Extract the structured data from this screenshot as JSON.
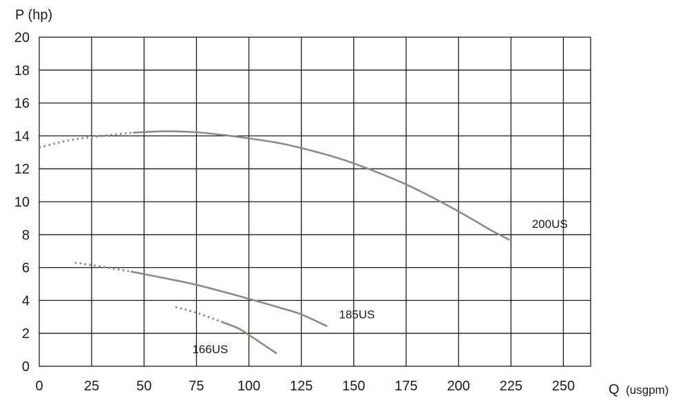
{
  "chart_data": {
    "type": "line",
    "title": "",
    "ylabel": "P (hp)",
    "xlabel": "Q",
    "xlabel_unit": "(usgpm)",
    "xlim": [
      0,
      263
    ],
    "ylim": [
      0,
      20
    ],
    "x_ticks": [
      0,
      25,
      50,
      75,
      100,
      125,
      150,
      175,
      200,
      225,
      250
    ],
    "y_ticks": [
      0,
      2,
      4,
      6,
      8,
      10,
      12,
      14,
      16,
      18,
      20
    ],
    "grid": true,
    "colors": {
      "curve": "#8c8a86",
      "grid": "#1a1a1a",
      "text": "#1a1a1a"
    },
    "series": [
      {
        "name": "200US",
        "label_at": [
          235,
          8.4
        ],
        "dotted": [
          [
            0,
            13.3
          ],
          [
            15,
            13.75
          ],
          [
            30,
            14.0
          ],
          [
            45,
            14.2
          ]
        ],
        "solid": [
          [
            45,
            14.2
          ],
          [
            60,
            14.28
          ],
          [
            75,
            14.22
          ],
          [
            90,
            14.02
          ],
          [
            100,
            13.85
          ],
          [
            115,
            13.55
          ],
          [
            130,
            13.1
          ],
          [
            145,
            12.55
          ],
          [
            160,
            11.85
          ],
          [
            175,
            11.05
          ],
          [
            190,
            10.1
          ],
          [
            205,
            9.05
          ],
          [
            215,
            8.3
          ],
          [
            224,
            7.7
          ]
        ]
      },
      {
        "name": "185US",
        "label_at": [
          143,
          2.9
        ],
        "dotted": [
          [
            17,
            6.3
          ],
          [
            30,
            6.05
          ],
          [
            44,
            5.75
          ]
        ],
        "solid": [
          [
            44,
            5.75
          ],
          [
            60,
            5.35
          ],
          [
            75,
            4.95
          ],
          [
            90,
            4.45
          ],
          [
            100,
            4.1
          ],
          [
            115,
            3.55
          ],
          [
            125,
            3.15
          ],
          [
            137,
            2.45
          ]
        ]
      },
      {
        "name": "166US",
        "label_at": [
          73,
          0.8
        ],
        "dotted": [
          [
            65,
            3.6
          ],
          [
            75,
            3.25
          ],
          [
            87,
            2.7
          ]
        ],
        "solid": [
          [
            87,
            2.7
          ],
          [
            95,
            2.3
          ],
          [
            100,
            1.9
          ],
          [
            106,
            1.4
          ],
          [
            113,
            0.8
          ]
        ]
      }
    ]
  }
}
